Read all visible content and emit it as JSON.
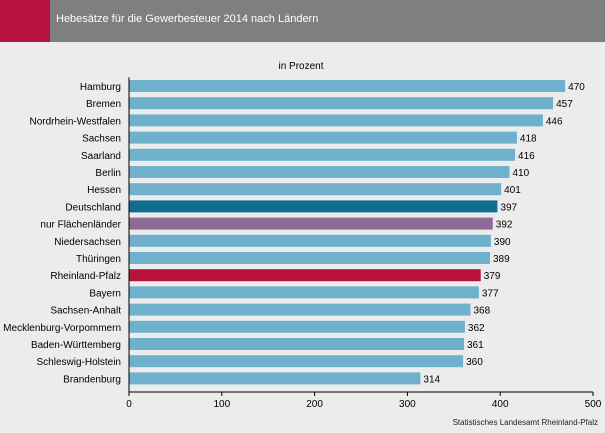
{
  "header": {
    "title": "Hebesätze für die Gewerbesteuer 2014 nach Ländern"
  },
  "colors": {
    "header_bg": "#7f7f7f",
    "accent": "#b5123e",
    "bar_default": "#6fb0cc",
    "bar_germany": "#0f6d92",
    "bar_flaechenlaender": "#8d6b94",
    "bar_rlp": "#b5123e"
  },
  "chart_data": {
    "type": "bar",
    "orientation": "horizontal",
    "subtitle": "in Prozent",
    "source": "Statistisches Landesamt Rheinland-Pfalz",
    "categories": [
      "Hamburg",
      "Bremen",
      "Nordrhein-Westfalen",
      "Sachsen",
      "Saarland",
      "Berlin",
      "Hessen",
      "Deutschland",
      "nur Flächenländer",
      "Niedersachsen",
      "Thüringen",
      "Rheinland-Pfalz",
      "Bayern",
      "Sachsen-Anhalt",
      "Mecklenburg-Vorpommern",
      "Baden-Württemberg",
      "Schleswig-Holstein",
      "Brandenburg"
    ],
    "values": [
      470,
      457,
      446,
      418,
      416,
      410,
      401,
      397,
      392,
      390,
      389,
      379,
      377,
      368,
      362,
      361,
      360,
      314
    ],
    "highlight": {
      "Deutschland": "bar_germany",
      "nur Flächenländer": "bar_flaechenlaender",
      "Rheinland-Pfalz": "bar_rlp"
    },
    "xlim": [
      0,
      500
    ],
    "xticks": [
      0,
      100,
      200,
      300,
      400,
      500
    ],
    "grid": false,
    "legend": "none"
  }
}
